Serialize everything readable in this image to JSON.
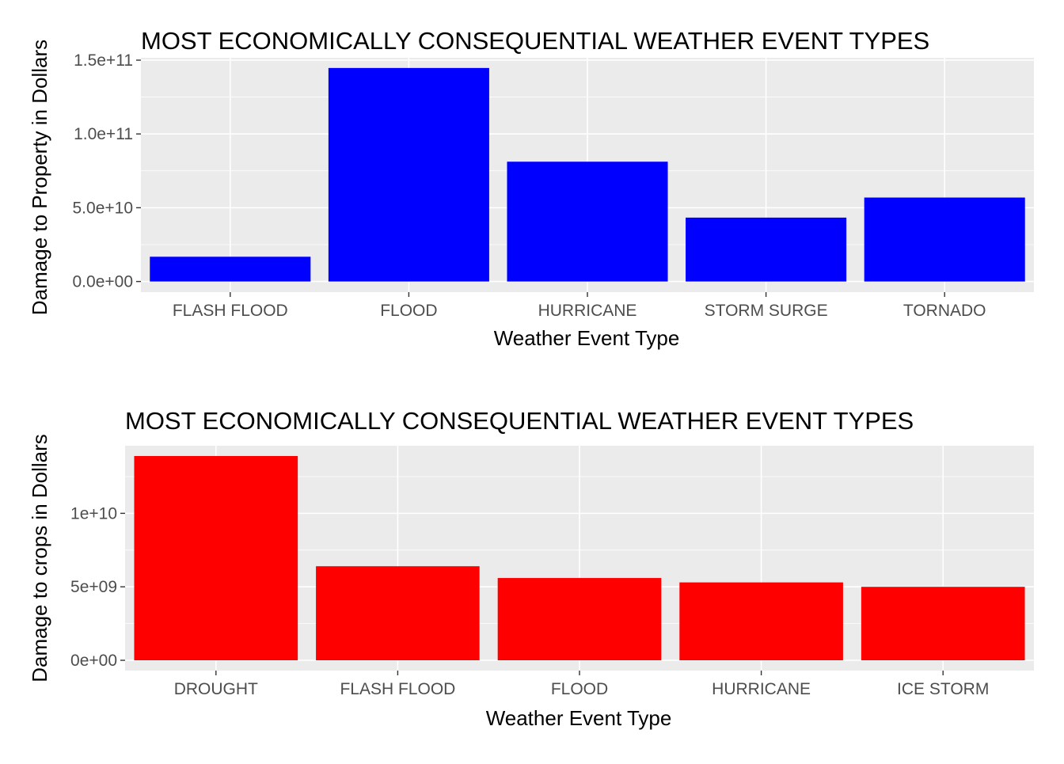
{
  "colors": {
    "panel_bg": "#ebebeb",
    "grid_major": "#ffffff",
    "tick_text": "#4d4d4d",
    "tick_mark": "#333333"
  },
  "chart_data": [
    {
      "type": "bar",
      "title": "MOST ECONOMICALLY CONSEQUENTIAL WEATHER EVENT TYPES",
      "xlabel": "Weather Event Type",
      "ylabel": "Damage to Property in Dollars",
      "categories": [
        "FLASH FLOOD",
        "FLOOD",
        "HURRICANE",
        "STORM SURGE",
        "TORNADO"
      ],
      "values": [
        16800000000,
        144700000000,
        81200000000,
        43300000000,
        56900000000
      ],
      "ylim": [
        -7200000000,
        151600000000
      ],
      "yticks": [
        0,
        50000000000,
        100000000000,
        150000000000
      ],
      "ytick_labels": [
        "0.0e+00",
        "5.0e+10",
        "1.0e+11",
        "1.5e+11"
      ],
      "bar_color": "#0000ff",
      "grid": true,
      "legend": "none"
    },
    {
      "type": "bar",
      "title": "MOST ECONOMICALLY CONSEQUENTIAL WEATHER EVENT TYPES",
      "xlabel": "Weather Event Type",
      "ylabel": "Damage to crops in Dollars",
      "categories": [
        "DROUGHT",
        "FLASH FLOOD",
        "FLOOD",
        "HURRICANE",
        "ICE STORM"
      ],
      "values": [
        13900000000,
        6400000000,
        5600000000,
        5300000000,
        5000000000
      ],
      "ylim": [
        -700000000,
        14600000000
      ],
      "yticks": [
        0,
        5000000000,
        10000000000
      ],
      "ytick_labels": [
        "0e+00",
        "5e+09",
        "1e+10"
      ],
      "bar_color": "#ff0000",
      "grid": true,
      "legend": "none"
    }
  ]
}
